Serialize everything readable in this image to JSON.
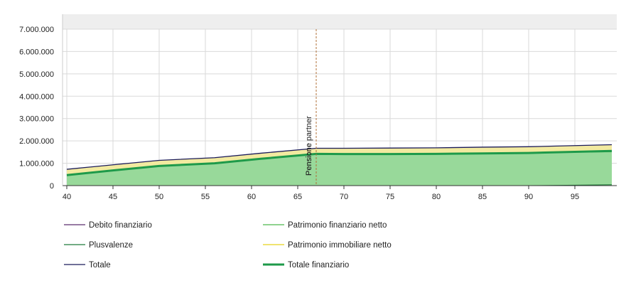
{
  "colors": {
    "debito_line": "#5a2d6e",
    "patrimonio_finanziario_line": "#4cb94c",
    "plusvalenze_line": "#1f7a3a",
    "immobiliare_line": "#e6d21a",
    "immobiliare_fill": "#f2eaa0",
    "finanziario_fill": "#98d99a",
    "totale_line": "#1c1c5a",
    "totale_finanziario_line": "#1e9a4a",
    "grid": "#d9d9d9",
    "band": "#eeeeee",
    "marker_line": "#b0703a"
  },
  "chart_data": {
    "type": "area",
    "title": "",
    "xlabel": "",
    "ylabel": "",
    "xlim": [
      40,
      99
    ],
    "ylim": [
      0,
      7000000
    ],
    "x_ticks": [
      40,
      45,
      50,
      55,
      60,
      65,
      70,
      75,
      80,
      85,
      90,
      95
    ],
    "x_tick_labels": [
      "40",
      "45",
      "50",
      "55",
      "60",
      "65",
      "70",
      "75",
      "80",
      "85",
      "90",
      "95"
    ],
    "y_ticks": [
      0,
      1000000,
      2000000,
      3000000,
      4000000,
      5000000,
      6000000,
      7000000
    ],
    "y_tick_labels": [
      "0",
      "1.000.000",
      "2.000.000",
      "3.000.000",
      "4.000.000",
      "5.000.000",
      "6.000.000",
      "7.000.000"
    ],
    "grid": true,
    "legend_position": "bottom",
    "x": [
      40,
      45,
      50,
      56,
      61,
      67,
      70,
      75,
      80,
      85,
      90,
      95,
      99
    ],
    "series": [
      {
        "key": "debito",
        "name": "Debito finanziario",
        "values": [
          0,
          0,
          0,
          0,
          0,
          0,
          0,
          0,
          0,
          0,
          0,
          0,
          0
        ]
      },
      {
        "key": "patrimonio_finanziario",
        "name": "Patrimonio finanziario netto",
        "values": [
          470000,
          680000,
          880000,
          1000000,
          1200000,
          1420000,
          1410000,
          1410000,
          1420000,
          1440000,
          1460000,
          1490000,
          1510000
        ]
      },
      {
        "key": "plusvalenze",
        "name": "Plusvalenze",
        "values": [
          0,
          0,
          0,
          0,
          0,
          0,
          0,
          0,
          0,
          0,
          0,
          20000,
          40000
        ]
      },
      {
        "key": "immobiliare",
        "name": "Patrimonio immobiliare netto",
        "values": [
          260000,
          250000,
          250000,
          250000,
          250000,
          250000,
          260000,
          270000,
          270000,
          280000,
          280000,
          280000,
          280000
        ]
      },
      {
        "key": "totale",
        "name": "Totale",
        "values": [
          730000,
          930000,
          1130000,
          1250000,
          1450000,
          1670000,
          1670000,
          1680000,
          1690000,
          1720000,
          1740000,
          1790000,
          1830000
        ]
      },
      {
        "key": "totale_finanziario",
        "name": "Totale finanziario",
        "values": [
          470000,
          680000,
          880000,
          1000000,
          1200000,
          1420000,
          1410000,
          1410000,
          1420000,
          1440000,
          1460000,
          1510000,
          1550000
        ]
      }
    ],
    "annotations": [
      {
        "x": 67,
        "label": "Pensione"
      },
      {
        "x": 67,
        "label": "Pensione partner"
      }
    ]
  },
  "legend": {
    "items": [
      {
        "label": "Debito finanziario",
        "color_key": "debito_line",
        "thick": false
      },
      {
        "label": "Patrimonio finanziario netto",
        "color_key": "patrimonio_finanziario_line",
        "thick": false
      },
      {
        "label": "Plusvalenze",
        "color_key": "plusvalenze_line",
        "thick": false
      },
      {
        "label": "Patrimonio immobiliare netto",
        "color_key": "immobiliare_line",
        "thick": false
      },
      {
        "label": "Totale",
        "color_key": "totale_line",
        "thick": false
      },
      {
        "label": "Totale finanziario",
        "color_key": "totale_finanziario_line",
        "thick": true
      }
    ]
  }
}
